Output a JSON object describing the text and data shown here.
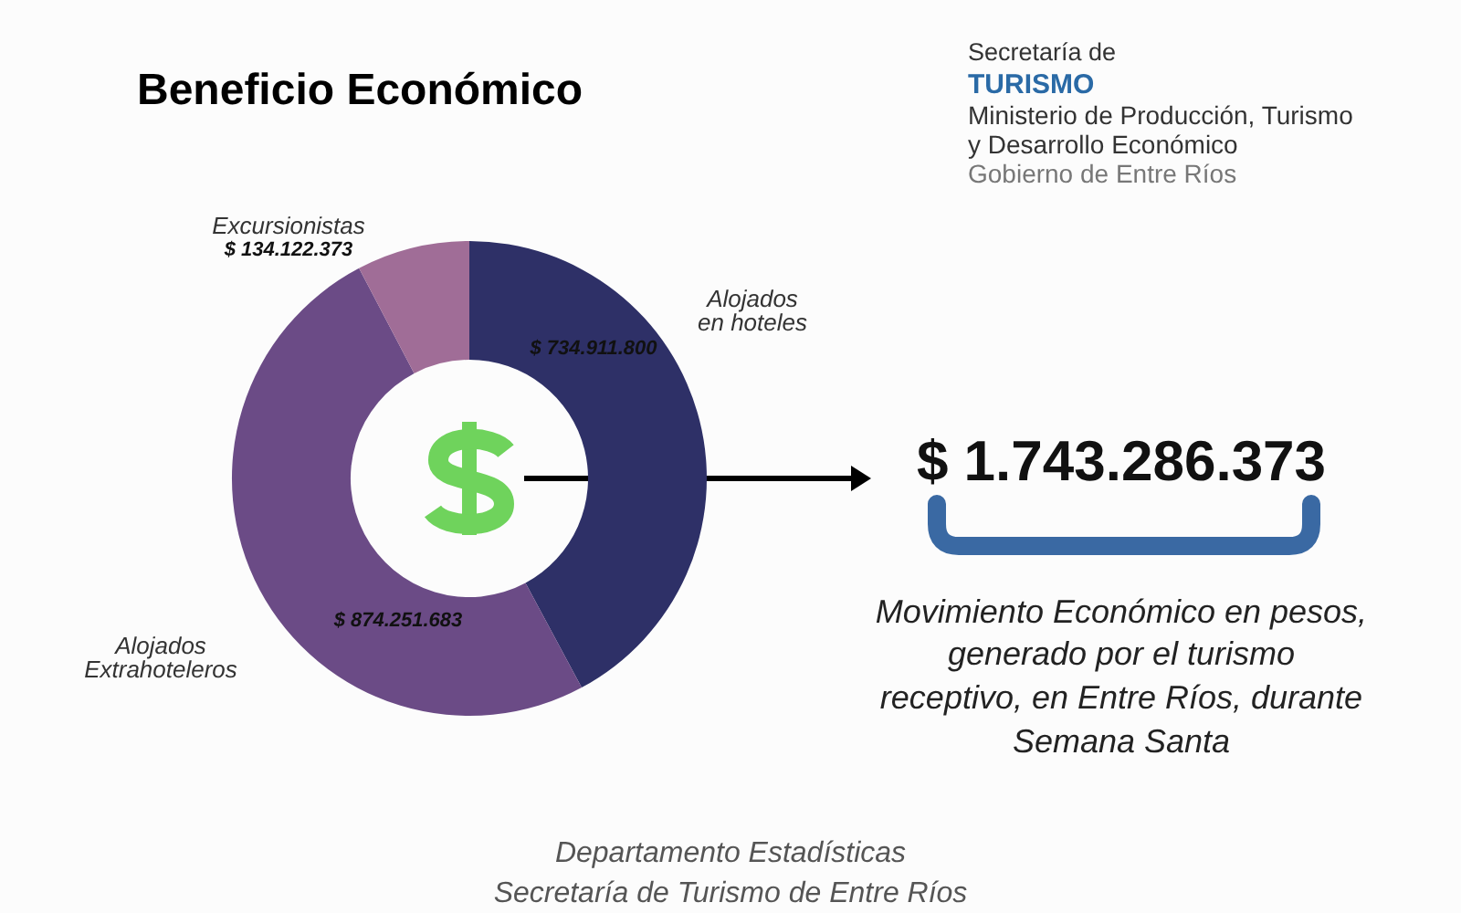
{
  "chart_data": {
    "type": "donut",
    "title": "Beneficio Económico",
    "categories": [
      "Alojados en hoteles",
      "Alojados Extrahoteleros",
      "Excursionistas"
    ],
    "values": [
      734911800,
      874251683,
      134122373
    ],
    "colors": [
      "#2e3067",
      "#6b4b86",
      "#a06d97"
    ],
    "value_labels": [
      "$ 734.911.800",
      "$ 874.251.683",
      "$ 134.122.373"
    ],
    "annotations": [
      "Secretaría de",
      "TURISMO",
      "Ministerio de Producción, Turismo",
      "y Desarrollo Económico",
      "Gobierno de Entre Ríos",
      "$ 1.743.286.373",
      "Movimiento Económico en pesos,",
      "generado por el turismo",
      "receptivo, en Entre Ríos, durante",
      "Semana Santa",
      "Departamento Estadísticas",
      "Secretaría de Turismo de Entre Ríos"
    ]
  }
}
